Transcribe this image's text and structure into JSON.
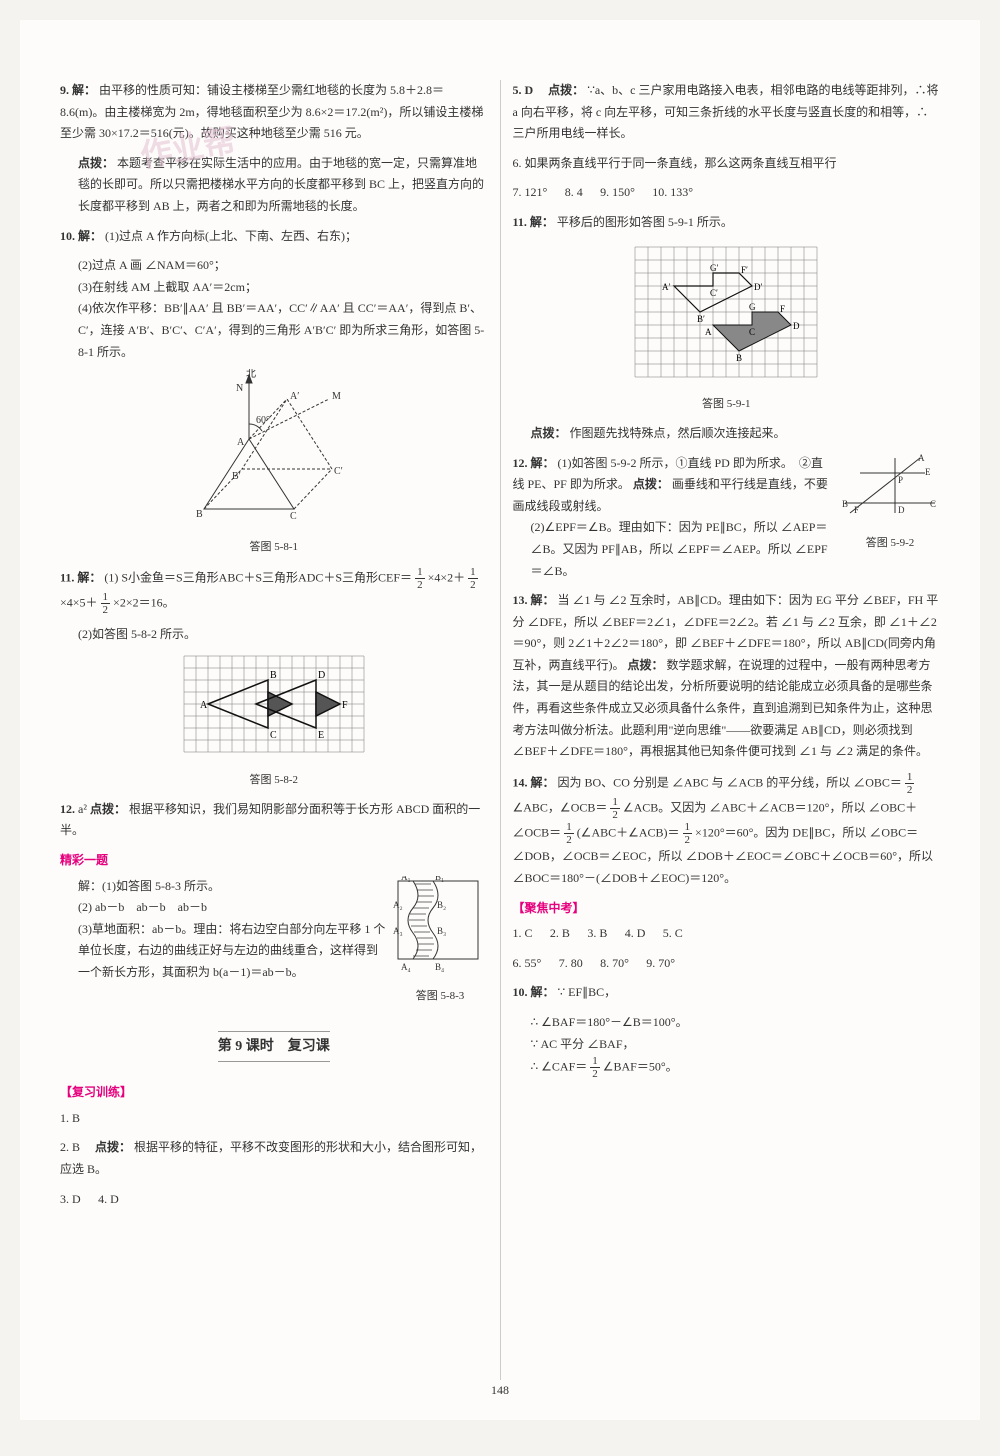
{
  "page_number": "148",
  "watermark": "作业帮",
  "left": {
    "q9": {
      "head": "9. 解：",
      "body": "由平移的性质可知：铺设主楼梯至少需红地毯的长度为 5.8＋2.8＝8.6(m)。由主楼梯宽为 2m，得地毯面积至少为 8.6×2＝17.2(m²)，所以铺设主楼梯至少需 30×17.2＝516(元)。故购买这种地毯至少需 516 元。",
      "hint_label": "点拨：",
      "hint": "本题考查平移在实际生活中的应用。由于地毯的宽一定，只需算准地毯的长即可。所以只需把楼梯水平方向的长度都平移到 BC 上，把竖直方向的长度都平移到 AB 上，两者之和即为所需地毯的长度。"
    },
    "q10": {
      "head": "10. 解：",
      "l1": "(1)过点 A 作方向标(上北、下南、左西、右东)；",
      "l2": "(2)过点 A 画 ∠NAM＝60°；",
      "l3": "(3)在射线 AM 上截取 AA′＝2cm；",
      "l4": "(4)依次作平移：BB′∥AA′ 且 BB′＝AA′，CC′∥AA′ 且 CC′＝AA′，得到点 B′、C′，连接 A′B′、B′C′、C′A′，得到的三角形 A′B′C′ 即为所求三角形，如答图 5-8-1 所示。",
      "fig_cap": "答图 5-8-1",
      "fig": {
        "labels": {
          "N": "北",
          "Nlabel": "N",
          "M": "M",
          "A": "A",
          "Ap": "A′",
          "B": "B",
          "Bp": "B′",
          "C": "C",
          "Cp": "C′",
          "angle": "60°"
        },
        "colors": {
          "stroke": "#333",
          "dash": "#333"
        }
      }
    },
    "q11": {
      "head": "11. 解：",
      "part1a": "(1) S小金鱼＝S三角形ABC＋S三角形ADC＋S三角形CEF＝",
      "frac1": {
        "n": "1",
        "d": "2"
      },
      "part1b": "×4×2＋",
      "frac2": {
        "n": "1",
        "d": "2"
      },
      "part1c": "×4×5＋",
      "frac3": {
        "n": "1",
        "d": "2"
      },
      "part1d": "×2×2＝16。",
      "l2": "(2)如答图 5-8-2 所示。",
      "fig_cap": "答图 5-8-2",
      "grid": {
        "cols": 15,
        "rows": 8,
        "cell": 12,
        "stroke": "#777",
        "shape": "#111"
      }
    },
    "q12": {
      "head": "12. ",
      "ans": "a²",
      "hint_label": " 点拨：",
      "hint": "根据平移知识，我们易知阴影部分面积等于长方形 ABCD 面积的一半。"
    },
    "jcyt": {
      "title": "精彩一题",
      "l1": "解：(1)如答图 5-8-3 所示。",
      "l2": "(2) ab－b　ab－b　ab－b",
      "l3": "(3)草地面积：ab－b。理由：将右边空白部分向左平移 1 个单位长度，右边的曲线正好与左边的曲线重合，这样得到一个新长方形，其面积为 b(a－1)＝ab－b。",
      "fig_cap": "答图 5-8-3",
      "fig": {
        "A1": "A₁",
        "B1": "B₁",
        "A2": "A₂",
        "B2": "B₂",
        "A3": "A₃",
        "B3": "B₃",
        "A4": "A₄",
        "B4": "B₄"
      }
    },
    "lesson": "第 9 课时　复习课",
    "fxxl": "【复习训练】",
    "a1": "1. B",
    "a2": {
      "head": "2. B　",
      "hint_label": "点拨：",
      "hint": "根据平移的特征，平移不改变图形的形状和大小，结合图形可知，应选 B。"
    },
    "a3": "3. D",
    "a4": "4. D"
  },
  "right": {
    "q5": {
      "head": "5. D　",
      "hint_label": "点拨：",
      "hint": "∵a、b、c 三户家用电路接入电表，相邻电路的电线等距排列，∴将 a 向右平移，将 c 向左平移，可知三条折线的水平长度与竖直长度的和相等，∴三户所用电线一样长。"
    },
    "q6": "6. 如果两条直线平行于同一条直线，那么这两条直线互相平行",
    "q7": "7. 121°",
    "q8": "8. 4",
    "q9": "9. 150°",
    "q10": "10. 133°",
    "q11": {
      "head": "11. 解：",
      "body": "平移后的图形如答图 5-9-1 所示。",
      "fig_cap": "答图 5-9-1",
      "hint_label": "点拨：",
      "hint": "作图题先找特殊点，然后顺次连接起来。",
      "grid": {
        "cols": 14,
        "rows": 10,
        "cell": 13,
        "stroke": "#777"
      },
      "labels": {
        "A": "A",
        "B": "B",
        "C": "C",
        "D": "D",
        "F": "F",
        "G": "G",
        "Ap": "A′",
        "Bp": "B′",
        "Cp": "C′",
        "Dp": "D′",
        "Fp": "F′",
        "Gp": "G′"
      }
    },
    "q12": {
      "head": "12. 解：",
      "l1": "(1)如答图 5-9-2 所示，①直线 PD 即为所求。　②直线 PE、PF 即为所求。",
      "hint_label": "点拨：",
      "hint_inline": "画垂线和平行线是直线，不要画成线段或射线。",
      "l2": "(2)∠EPF＝∠B。理由如下：因为 PE∥BC，所以 ∠AEP＝∠B。又因为 PF∥AB，所以 ∠EPF＝∠AEP。所以 ∠EPF＝∠B。",
      "fig_cap": "答图 5-9-2",
      "fig_labels": {
        "A": "A",
        "B": "B",
        "C": "C",
        "D": "D",
        "E": "E",
        "F": "F",
        "P": "P"
      }
    },
    "q13": {
      "head": "13. 解：",
      "body": "当 ∠1 与 ∠2 互余时，AB∥CD。理由如下：因为 EG 平分 ∠BEF，FH 平分 ∠DFE，所以 ∠BEF＝2∠1，∠DFE＝2∠2。若 ∠1 与 ∠2 互余，即 ∠1＋∠2＝90°，则 2∠1＋2∠2＝180°，即 ∠BEF＋∠DFE＝180°，所以 AB∥CD(同旁内角互补，两直线平行)。",
      "hint_label": "点拨：",
      "hint": "数学题求解，在说理的过程中，一般有两种思考方法，其一是从题目的结论出发，分析所要说明的结论能成立必须具备的是哪些条件，再看这些条件成立又必须具备什么条件，直到追溯到已知条件为止，这种思考方法叫做分析法。此题利用\"逆向思维\"——欲要满足 AB∥CD，则必须找到 ∠BEF＋∠DFE＝180°，再根据其他已知条件便可找到 ∠1 与 ∠2 满足的条件。"
    },
    "q14": {
      "head": "14. 解：",
      "p1": "因为 BO、CO 分别是 ∠ABC 与 ∠ACB 的平分线，所以 ∠OBC＝",
      "f1": {
        "n": "1",
        "d": "2"
      },
      "p2": "∠ABC，∠OCB＝",
      "f2": {
        "n": "1",
        "d": "2"
      },
      "p3": "∠ACB。又因为 ∠ABC＋∠ACB＝120°，所以 ∠OBC＋∠OCB＝",
      "f3": {
        "n": "1",
        "d": "2"
      },
      "p4": "(∠ABC＋∠ACB)＝",
      "f4": {
        "n": "1",
        "d": "2"
      },
      "p5": "×120°＝60°。因为 DE∥BC，所以 ∠OBC＝∠DOB，∠OCB＝∠EOC，所以 ∠DOB＋∠EOC＝∠OBC＋∠OCB＝60°，所以 ∠BOC＝180°－(∠DOB＋∠EOC)＝120°。"
    },
    "jjzk": "【聚焦中考】",
    "zk_row1": {
      "a1": "1. C",
      "a2": "2. B",
      "a3": "3. B",
      "a4": "4. D",
      "a5": "5. C"
    },
    "zk_row2": {
      "a6": "6. 55°",
      "a7": "7. 80",
      "a8": "8. 70°",
      "a9": "9. 70°"
    },
    "zk10": {
      "head": "10. 解：",
      "l1": "∵ EF∥BC，",
      "l2": "∴ ∠BAF＝180°－∠B＝100°。",
      "l3": "∵ AC 平分 ∠BAF，",
      "l4a": "∴ ∠CAF＝",
      "f": {
        "n": "1",
        "d": "2"
      },
      "l4b": "∠BAF＝50°。"
    }
  }
}
